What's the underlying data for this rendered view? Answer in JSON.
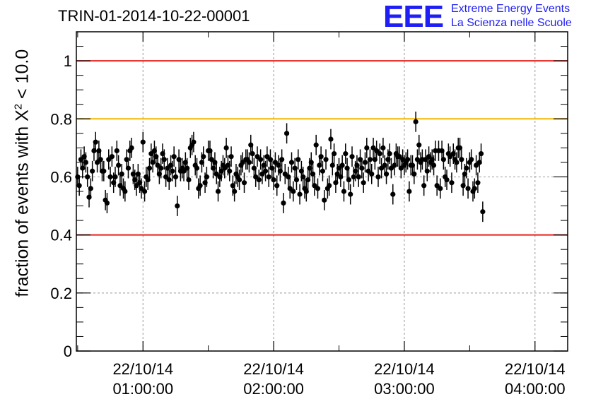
{
  "title": "TRIN-01-2014-10-22-00001",
  "logo": {
    "mark": "EEE",
    "line1": "Extreme Energy Events",
    "line2": "La Scienza nelle Scuole"
  },
  "ylabel": {
    "prefix": "fraction of events with ",
    "symbol": "X",
    "sup": "2",
    "suffix": " < 10.0"
  },
  "chart_data": {
    "type": "scatter",
    "title": "TRIN-01-2014-10-22-00001",
    "ylabel": "fraction of events with X² < 10.0",
    "xlabel": "",
    "x_range_hours": [
      0.49,
      4.25
    ],
    "ylim": [
      0,
      1.1
    ],
    "grid": true,
    "yticks": [
      "0",
      "0.2",
      "0.4",
      "0.6",
      "0.8",
      "1"
    ],
    "ytick_values": [
      0,
      0.2,
      0.4,
      0.6,
      0.8,
      1.0
    ],
    "xticks": [
      {
        "hour": 1,
        "date": "22/10/14",
        "time": "01:00:00"
      },
      {
        "hour": 2,
        "date": "22/10/14",
        "time": "02:00:00"
      },
      {
        "hour": 3,
        "date": "22/10/14",
        "time": "03:00:00"
      },
      {
        "hour": 4,
        "date": "22/10/14",
        "time": "04:00:00"
      }
    ],
    "reference_lines": [
      {
        "y": 1.0,
        "color": "#e8231d"
      },
      {
        "y": 0.8,
        "color": "#f5b800"
      },
      {
        "y": 0.4,
        "color": "#e8231d"
      }
    ],
    "error_bar": 0.035,
    "series": [
      {
        "x_start": 0.5,
        "x_step": 0.0125,
        "values": [
          0.6,
          0.57,
          0.66,
          0.63,
          0.67,
          0.65,
          0.6,
          0.53,
          0.56,
          0.62,
          0.69,
          0.72,
          0.65,
          0.69,
          0.66,
          0.62,
          0.62,
          0.52,
          0.51,
          0.66,
          0.6,
          0.67,
          0.58,
          0.6,
          0.69,
          0.64,
          0.57,
          0.61,
          0.56,
          0.55,
          0.66,
          0.63,
          0.69,
          0.7,
          0.61,
          0.59,
          0.57,
          0.61,
          0.58,
          0.56,
          0.72,
          0.55,
          0.6,
          0.59,
          0.63,
          0.68,
          0.65,
          0.69,
          0.67,
          0.64,
          0.61,
          0.63,
          0.68,
          0.66,
          0.6,
          0.63,
          0.59,
          0.64,
          0.62,
          0.67,
          0.6,
          0.5,
          0.66,
          0.62,
          0.63,
          0.62,
          0.65,
          0.63,
          0.59,
          0.7,
          0.71,
          0.72,
          0.64,
          0.63,
          0.56,
          0.57,
          0.65,
          0.67,
          0.58,
          0.6,
          0.69,
          0.69,
          0.66,
          0.63,
          0.65,
          0.61,
          0.55,
          0.6,
          0.62,
          0.64,
          0.63,
          0.7,
          0.64,
          0.62,
          0.67,
          0.57,
          0.55,
          0.61,
          0.6,
          0.59,
          0.64,
          0.65,
          0.58,
          0.66,
          0.66,
          0.65,
          0.71,
          0.68,
          0.63,
          0.6,
          0.67,
          0.59,
          0.66,
          0.61,
          0.64,
          0.62,
          0.67,
          0.6,
          0.66,
          0.63,
          0.59,
          0.65,
          0.57,
          0.64,
          0.62,
          0.66,
          0.51,
          0.61,
          0.75,
          0.6,
          0.56,
          0.65,
          0.55,
          0.63,
          0.59,
          0.66,
          0.54,
          0.62,
          0.6,
          0.56,
          0.55,
          0.59,
          0.63,
          0.65,
          0.61,
          0.57,
          0.71,
          0.56,
          0.64,
          0.67,
          0.62,
          0.52,
          0.66,
          0.56,
          0.57,
          0.73,
          0.64,
          0.68,
          0.58,
          0.61,
          0.63,
          0.6,
          0.64,
          0.55,
          0.68,
          0.63,
          0.59,
          0.54,
          0.67,
          0.6,
          0.62,
          0.64,
          0.6,
          0.66,
          0.63,
          0.58,
          0.65,
          0.7,
          0.62,
          0.66,
          0.61,
          0.7,
          0.66,
          0.69,
          0.6,
          0.68,
          0.63,
          0.7,
          0.64,
          0.61,
          0.66,
          0.68,
          0.63,
          0.54,
          0.64,
          0.68,
          0.67,
          0.67,
          0.63,
          0.66,
          0.64,
          0.65,
          0.66,
          0.55,
          0.64,
          0.64,
          0.61,
          0.79,
          0.66,
          0.71,
          0.65,
          0.66,
          0.57,
          0.66,
          0.62,
          0.67,
          0.65,
          0.66,
          0.64,
          0.69,
          0.57,
          0.69,
          0.56,
          0.69,
          0.66,
          0.6,
          0.59,
          0.68,
          0.67,
          0.58,
          0.68,
          0.66,
          0.65,
          0.7,
          0.7,
          0.66,
          0.57,
          0.61,
          0.63,
          0.56,
          0.65,
          0.66,
          0.55,
          0.56,
          0.64,
          0.58,
          0.65,
          0.68,
          0.48
        ]
      }
    ]
  }
}
